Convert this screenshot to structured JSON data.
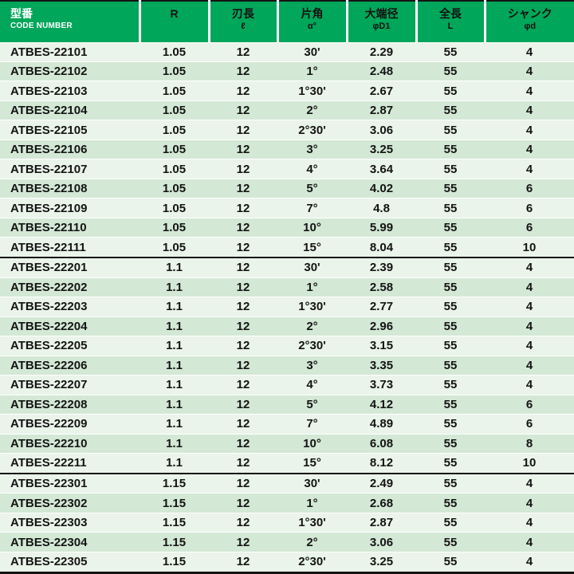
{
  "colors": {
    "header_green": "#00A65A",
    "row_light": "#EAF4EA",
    "row_dark": "#D3E8D5",
    "separator_black": "#141414",
    "header_code_text": "#FFFFFF",
    "header_text": "#111111"
  },
  "table": {
    "col_names": [
      "code-number-cell",
      "r-cell",
      "blade-length-cell",
      "half-angle-cell",
      "large-end-dia-cell",
      "overall-length-cell",
      "shank-dia-cell"
    ],
    "headers": [
      {
        "line1": "型番",
        "line2": "CODE NUMBER"
      },
      {
        "line1": "R",
        "line2": ""
      },
      {
        "line1": "刃長",
        "line2": "ℓ"
      },
      {
        "line1": "片角",
        "line2": "α°"
      },
      {
        "line1": "大端径",
        "line2": "φD1"
      },
      {
        "line1": "全長",
        "line2": "L"
      },
      {
        "line1": "シャンク",
        "line2": "φd"
      }
    ],
    "groups": [
      {
        "rows": [
          [
            "ATBES-22101",
            "1.05",
            "12",
            "30'",
            "2.29",
            "55",
            "4"
          ],
          [
            "ATBES-22102",
            "1.05",
            "12",
            "1°",
            "2.48",
            "55",
            "4"
          ],
          [
            "ATBES-22103",
            "1.05",
            "12",
            "1°30'",
            "2.67",
            "55",
            "4"
          ],
          [
            "ATBES-22104",
            "1.05",
            "12",
            "2°",
            "2.87",
            "55",
            "4"
          ],
          [
            "ATBES-22105",
            "1.05",
            "12",
            "2°30'",
            "3.06",
            "55",
            "4"
          ],
          [
            "ATBES-22106",
            "1.05",
            "12",
            "3°",
            "3.25",
            "55",
            "4"
          ],
          [
            "ATBES-22107",
            "1.05",
            "12",
            "4°",
            "3.64",
            "55",
            "4"
          ],
          [
            "ATBES-22108",
            "1.05",
            "12",
            "5°",
            "4.02",
            "55",
            "6"
          ],
          [
            "ATBES-22109",
            "1.05",
            "12",
            "7°",
            "4.8",
            "55",
            "6"
          ],
          [
            "ATBES-22110",
            "1.05",
            "12",
            "10°",
            "5.99",
            "55",
            "6"
          ],
          [
            "ATBES-22111",
            "1.05",
            "12",
            "15°",
            "8.04",
            "55",
            "10"
          ]
        ]
      },
      {
        "rows": [
          [
            "ATBES-22201",
            "1.1",
            "12",
            "30'",
            "2.39",
            "55",
            "4"
          ],
          [
            "ATBES-22202",
            "1.1",
            "12",
            "1°",
            "2.58",
            "55",
            "4"
          ],
          [
            "ATBES-22203",
            "1.1",
            "12",
            "1°30'",
            "2.77",
            "55",
            "4"
          ],
          [
            "ATBES-22204",
            "1.1",
            "12",
            "2°",
            "2.96",
            "55",
            "4"
          ],
          [
            "ATBES-22205",
            "1.1",
            "12",
            "2°30'",
            "3.15",
            "55",
            "4"
          ],
          [
            "ATBES-22206",
            "1.1",
            "12",
            "3°",
            "3.35",
            "55",
            "4"
          ],
          [
            "ATBES-22207",
            "1.1",
            "12",
            "4°",
            "3.73",
            "55",
            "4"
          ],
          [
            "ATBES-22208",
            "1.1",
            "12",
            "5°",
            "4.12",
            "55",
            "6"
          ],
          [
            "ATBES-22209",
            "1.1",
            "12",
            "7°",
            "4.89",
            "55",
            "6"
          ],
          [
            "ATBES-22210",
            "1.1",
            "12",
            "10°",
            "6.08",
            "55",
            "8"
          ],
          [
            "ATBES-22211",
            "1.1",
            "12",
            "15°",
            "8.12",
            "55",
            "10"
          ]
        ]
      },
      {
        "rows": [
          [
            "ATBES-22301",
            "1.15",
            "12",
            "30'",
            "2.49",
            "55",
            "4"
          ],
          [
            "ATBES-22302",
            "1.15",
            "12",
            "1°",
            "2.68",
            "55",
            "4"
          ],
          [
            "ATBES-22303",
            "1.15",
            "12",
            "1°30'",
            "2.87",
            "55",
            "4"
          ],
          [
            "ATBES-22304",
            "1.15",
            "12",
            "2°",
            "3.06",
            "55",
            "4"
          ],
          [
            "ATBES-22305",
            "1.15",
            "12",
            "2°30'",
            "3.25",
            "55",
            "4"
          ]
        ]
      }
    ]
  }
}
